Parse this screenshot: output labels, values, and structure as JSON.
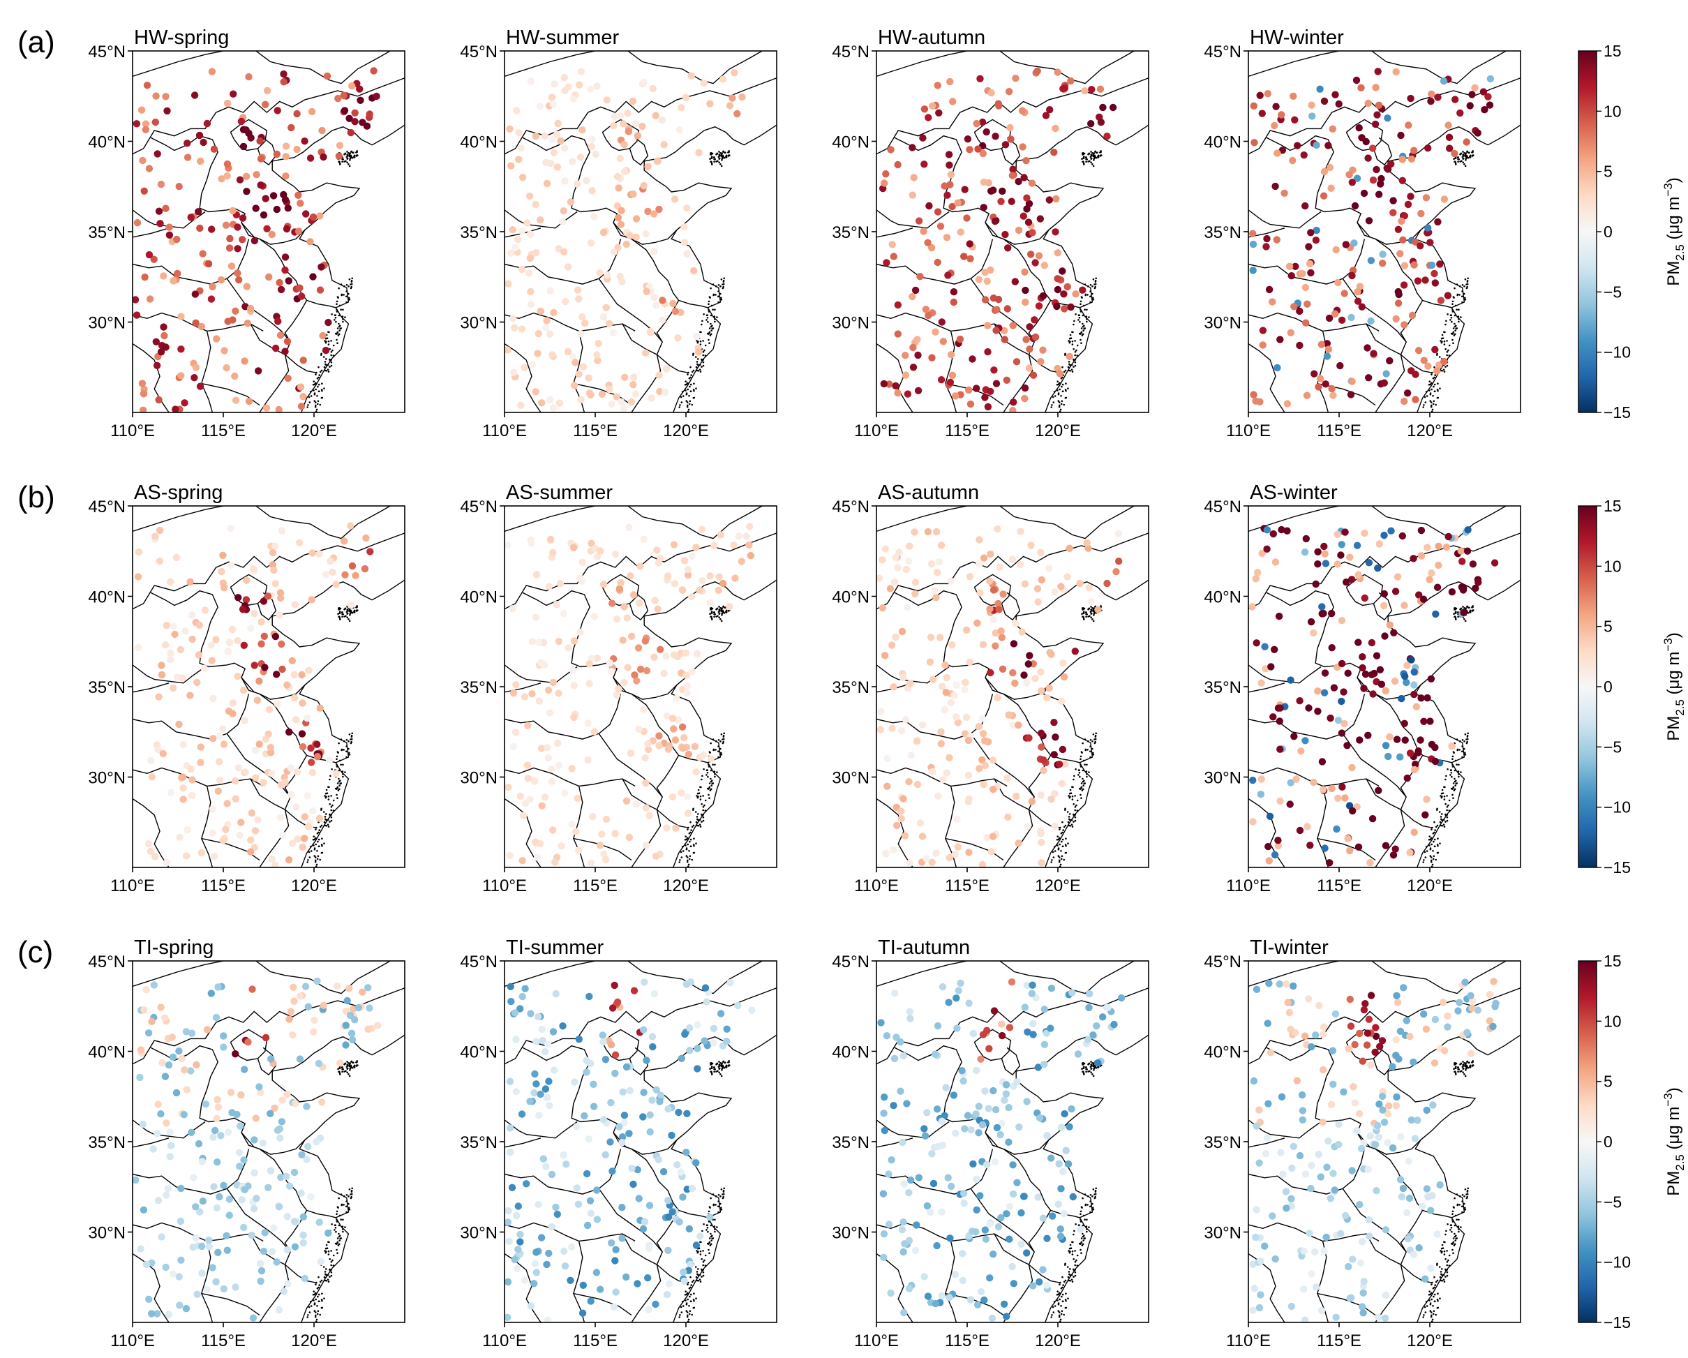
{
  "figure": {
    "rows": [
      {
        "row_label": "(a)",
        "panels": [
          {
            "title": "HW-spring",
            "seed": 11,
            "dist": "warm_strong"
          },
          {
            "title": "HW-summer",
            "seed": 12,
            "dist": "warm_light"
          },
          {
            "title": "HW-autumn",
            "seed": 13,
            "dist": "warm_strong"
          },
          {
            "title": "HW-winter",
            "seed": 14,
            "dist": "warm_mixed"
          }
        ]
      },
      {
        "row_label": "(b)",
        "panels": [
          {
            "title": "AS-spring",
            "seed": 21,
            "dist": "warm_mid"
          },
          {
            "title": "AS-summer",
            "seed": 22,
            "dist": "warm_light"
          },
          {
            "title": "AS-autumn",
            "seed": 23,
            "dist": "warm_mid"
          },
          {
            "title": "AS-winter",
            "seed": 24,
            "dist": "mixed_strong"
          }
        ]
      },
      {
        "row_label": "(c)",
        "panels": [
          {
            "title": "TI-spring",
            "seed": 31,
            "dist": "cool_mixed"
          },
          {
            "title": "TI-summer",
            "seed": 32,
            "dist": "cool"
          },
          {
            "title": "TI-autumn",
            "seed": 33,
            "dist": "cool"
          },
          {
            "title": "TI-winter",
            "seed": 34,
            "dist": "cool_mixed"
          }
        ]
      }
    ],
    "lat_ticks": [
      {
        "value": 45,
        "label": "45°N"
      },
      {
        "value": 40,
        "label": "40°N"
      },
      {
        "value": 35,
        "label": "35°N"
      },
      {
        "value": 30,
        "label": "30°N"
      }
    ],
    "lon_ticks": [
      {
        "value": 110,
        "label": "110°E"
      },
      {
        "value": 115,
        "label": "115°E"
      },
      {
        "value": 120,
        "label": "120°E"
      }
    ],
    "extent": {
      "lon_min": 110,
      "lon_max": 125,
      "lat_min": 25,
      "lat_max": 45
    },
    "colorbar": {
      "label": "PM2.5 (μg m−3)",
      "label_main": "PM",
      "label_sub": "2.5",
      "label_unit": " (μg m",
      "label_sup": "−3",
      "label_close": ")",
      "vmin": -15,
      "vmax": 15,
      "ticks": [
        15,
        10,
        5,
        0,
        -5,
        -10,
        -15
      ],
      "tick_labels": [
        "15",
        "10",
        "5",
        "0",
        "−5",
        "−10",
        "−15"
      ],
      "colormap": "RdBu_r",
      "colors": [
        "#053061",
        "#2166ac",
        "#4393c3",
        "#92c5de",
        "#d1e5f0",
        "#f7f7f7",
        "#fddbc7",
        "#f4a582",
        "#d6604d",
        "#b2182b",
        "#67001f"
      ]
    }
  }
}
